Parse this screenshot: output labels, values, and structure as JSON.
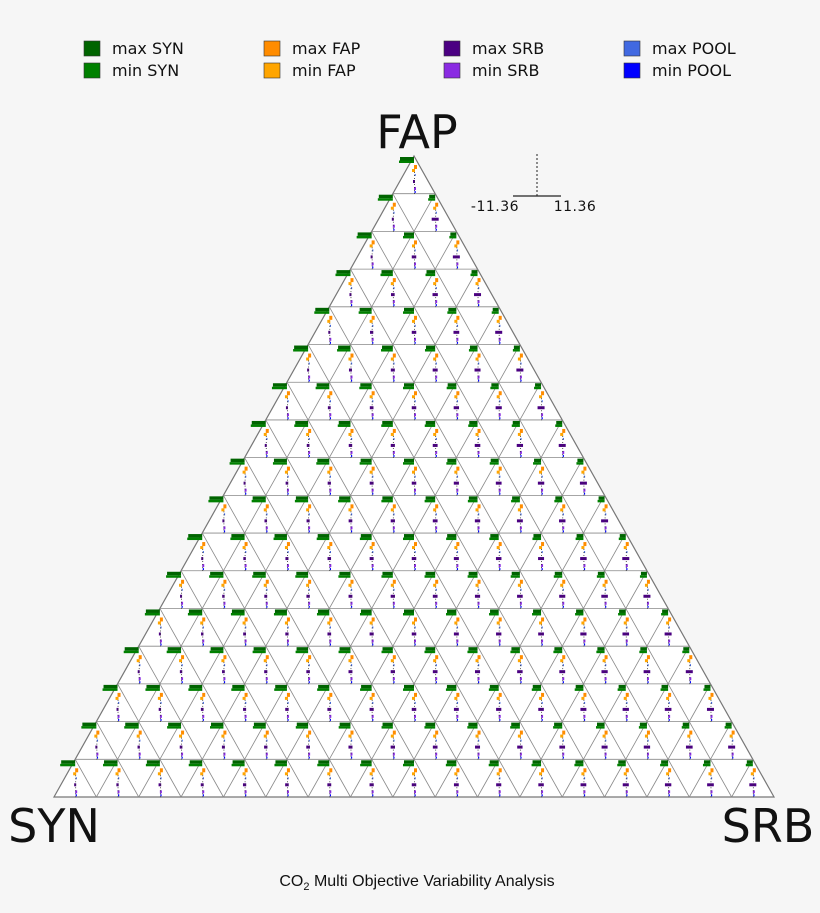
{
  "chart_data": {
    "type": "ternary-glyph",
    "title": {
      "prefix": "CO",
      "subscript": "2",
      "rest": " Multi Objective Variability Analysis"
    },
    "vertices": {
      "top": "FAP",
      "left": "SYN",
      "right": "SRB"
    },
    "divisions": 17,
    "scale": {
      "min_label": "-11.36",
      "max_label": "11.36",
      "min": -11.36,
      "max": 11.36
    },
    "legend": [
      {
        "label": "max SYN",
        "color": "#006400"
      },
      {
        "label": "min SYN",
        "color": "#008000"
      },
      {
        "label": "max FAP",
        "color": "#ff8c00"
      },
      {
        "label": "min FAP",
        "color": "#ffa500"
      },
      {
        "label": "max SRB",
        "color": "#4b0082"
      },
      {
        "label": "min SRB",
        "color": "#8a2be2"
      },
      {
        "label": "max POOL",
        "color": "#4169e1"
      },
      {
        "label": "min POOL",
        "color": "#0000ff"
      }
    ],
    "colors": {
      "grid": "#888888",
      "outline": "#777777",
      "fill": "#ffffff"
    }
  }
}
